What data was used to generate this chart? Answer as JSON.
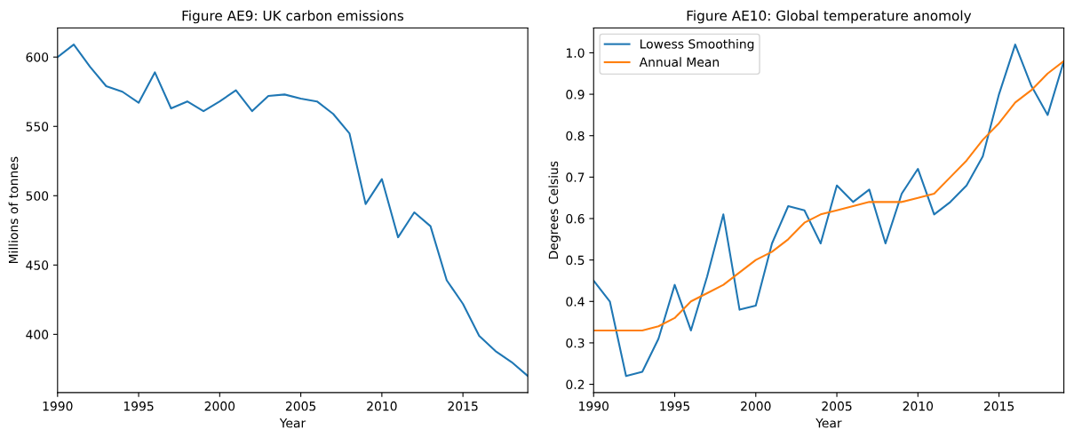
{
  "chart_data": [
    {
      "type": "line",
      "title": "Figure AE9: UK carbon emissions",
      "xlabel": "Year",
      "ylabel": "Millions of tonnes",
      "x": [
        1990,
        1991,
        1992,
        1993,
        1994,
        1995,
        1996,
        1997,
        1998,
        1999,
        2000,
        2001,
        2002,
        2003,
        2004,
        2005,
        2006,
        2007,
        2008,
        2009,
        2010,
        2011,
        2012,
        2013,
        2014,
        2015,
        2016,
        2017,
        2018,
        2019
      ],
      "series": [
        {
          "color": "#1f77b4",
          "values": [
            600,
            609,
            593,
            579,
            575,
            567,
            589,
            563,
            568,
            561,
            568,
            576,
            561,
            572,
            573,
            570,
            568,
            559,
            545,
            494,
            512,
            470,
            488,
            478,
            439,
            422,
            399,
            388,
            380,
            370
          ]
        }
      ],
      "xlim": [
        1990,
        2019
      ],
      "xticks": [
        1990,
        1995,
        2000,
        2005,
        2010,
        2015
      ],
      "ylim": [
        358,
        621
      ],
      "yticks": [
        400,
        450,
        500,
        550,
        600
      ],
      "grid": false,
      "legend": false
    },
    {
      "type": "line",
      "title": "Figure AE10: Global temperature anomoly",
      "xlabel": "Year",
      "ylabel": "Degrees Celsius",
      "x": [
        1990,
        1991,
        1992,
        1993,
        1994,
        1995,
        1996,
        1997,
        1998,
        1999,
        2000,
        2001,
        2002,
        2003,
        2004,
        2005,
        2006,
        2007,
        2008,
        2009,
        2010,
        2011,
        2012,
        2013,
        2014,
        2015,
        2016,
        2017,
        2018,
        2019
      ],
      "series": [
        {
          "name": "Lowess Smoothing",
          "color": "#1f77b4",
          "values": [
            0.45,
            0.4,
            0.22,
            0.23,
            0.31,
            0.44,
            0.33,
            0.46,
            0.61,
            0.38,
            0.39,
            0.54,
            0.63,
            0.62,
            0.54,
            0.68,
            0.64,
            0.67,
            0.54,
            0.66,
            0.72,
            0.61,
            0.64,
            0.68,
            0.75,
            0.9,
            1.02,
            0.92,
            0.85,
            0.98
          ]
        },
        {
          "name": "Annual Mean",
          "color": "#ff7f0e",
          "values": [
            0.33,
            0.33,
            0.33,
            0.33,
            0.34,
            0.36,
            0.4,
            0.42,
            0.44,
            0.47,
            0.5,
            0.52,
            0.55,
            0.59,
            0.61,
            0.62,
            0.63,
            0.64,
            0.64,
            0.64,
            0.65,
            0.66,
            0.7,
            0.74,
            0.79,
            0.83,
            0.88,
            0.91,
            0.95,
            0.98
          ]
        }
      ],
      "xlim": [
        1990,
        2019
      ],
      "xticks": [
        1990,
        1995,
        2000,
        2005,
        2010,
        2015
      ],
      "ylim": [
        0.18,
        1.06
      ],
      "yticks": [
        {
          "value": 0.2,
          "label": "0.2"
        },
        {
          "value": 0.3,
          "label": "0.3"
        },
        {
          "value": 0.4,
          "label": "0.4"
        },
        {
          "value": 0.5,
          "label": "0.5"
        },
        {
          "value": 0.6,
          "label": "0.6"
        },
        {
          "value": 0.7,
          "label": "0.7"
        },
        {
          "value": 0.8,
          "label": "0.8"
        },
        {
          "value": 0.9,
          "label": "0.9"
        },
        {
          "value": 1.0,
          "label": "1.0"
        }
      ],
      "grid": false,
      "legend": "top left"
    }
  ]
}
